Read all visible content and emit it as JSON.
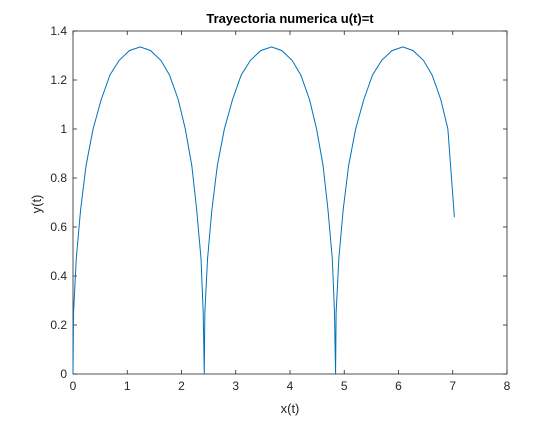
{
  "chart_data": {
    "type": "line",
    "title": "Trayectoria numerica u(t)=t",
    "xlabel": "x(t)",
    "ylabel": "y(t)",
    "xlim": [
      0,
      8
    ],
    "ylim": [
      0,
      1.4
    ],
    "x_ticks": [
      "0",
      "1",
      "2",
      "3",
      "4",
      "5",
      "6",
      "7",
      "8"
    ],
    "y_ticks": [
      "0",
      "0.2",
      "0.4",
      "0.6",
      "0.8",
      "1",
      "1.2",
      "1.4"
    ],
    "grid": false,
    "line_color": "#0072BD",
    "series": [
      {
        "x": [
          0.0,
          0.01,
          0.06,
          0.14,
          0.24,
          0.37,
          0.52,
          0.68,
          0.85,
          1.04,
          1.24,
          1.43,
          1.62,
          1.78,
          1.94,
          2.07,
          2.19,
          2.28,
          2.36,
          2.4,
          2.42,
          2.43,
          2.48,
          2.56,
          2.66,
          2.79,
          2.94,
          3.1,
          3.27,
          3.46,
          3.66,
          3.85,
          4.04,
          4.2,
          4.36,
          4.49,
          4.61,
          4.7,
          4.78,
          4.82,
          4.84,
          4.85,
          4.9,
          4.98,
          5.08,
          5.21,
          5.36,
          5.52,
          5.69,
          5.88,
          6.08,
          6.27,
          6.46,
          6.62,
          6.78,
          6.91,
          7.03
        ],
        "y": [
          0.0,
          0.25,
          0.47,
          0.67,
          0.85,
          1.0,
          1.12,
          1.22,
          1.28,
          1.32,
          1.335,
          1.32,
          1.28,
          1.22,
          1.12,
          1.0,
          0.85,
          0.67,
          0.47,
          0.25,
          0.0,
          0.25,
          0.47,
          0.67,
          0.85,
          1.0,
          1.12,
          1.22,
          1.28,
          1.32,
          1.335,
          1.32,
          1.28,
          1.22,
          1.12,
          1.0,
          0.85,
          0.67,
          0.47,
          0.25,
          0.0,
          0.25,
          0.47,
          0.67,
          0.85,
          1.0,
          1.12,
          1.22,
          1.28,
          1.32,
          1.335,
          1.32,
          1.28,
          1.22,
          1.12,
          1.0,
          0.64
        ]
      }
    ]
  }
}
